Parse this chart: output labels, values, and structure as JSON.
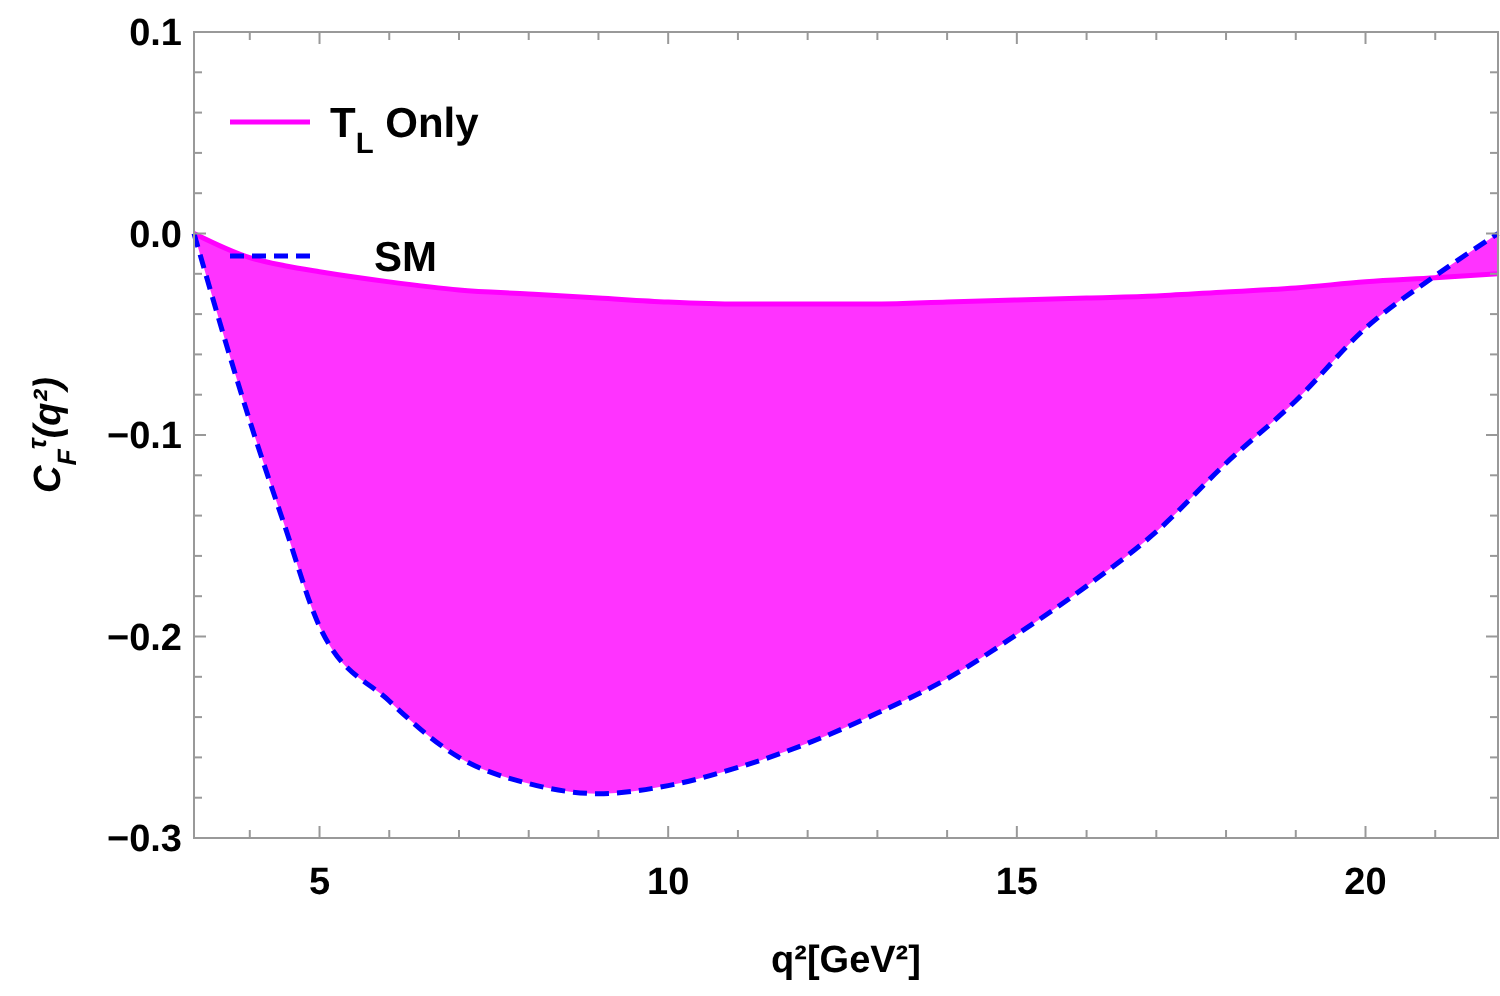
{
  "chart_data": {
    "type": "line",
    "xlabel": "q²[GeV²]",
    "ylabel": "C$_{F}$$^{τ}$(q²)",
    "x": [
      3.2,
      4,
      4.5,
      5,
      6,
      7,
      8,
      9,
      10,
      11,
      12,
      13,
      14,
      15,
      16,
      17,
      18,
      19,
      20,
      21,
      21.9
    ],
    "series": [
      {
        "name": "T$_{L}$ Only",
        "color": "#ff00ff",
        "line_style": "solid",
        "values": [
          0,
          -0.012,
          -0.016,
          -0.019,
          -0.024,
          -0.028,
          -0.03,
          -0.032,
          -0.034,
          -0.035,
          -0.035,
          -0.035,
          -0.034,
          -0.033,
          -0.032,
          -0.031,
          -0.029,
          -0.027,
          -0.024,
          -0.022,
          -0.02
        ],
        "lower": [
          0,
          -0.093,
          -0.145,
          -0.195,
          -0.232,
          -0.26,
          -0.273,
          -0.278,
          -0.274,
          -0.265,
          -0.253,
          -0.238,
          -0.221,
          -0.199,
          -0.175,
          -0.148,
          -0.114,
          -0.083,
          -0.047,
          -0.021,
          0
        ],
        "upper": [
          0,
          -0.012,
          -0.016,
          -0.019,
          -0.024,
          -0.028,
          -0.03,
          -0.032,
          -0.034,
          -0.035,
          -0.035,
          -0.035,
          -0.034,
          -0.033,
          -0.032,
          -0.031,
          -0.029,
          -0.027,
          -0.024,
          -0.022,
          -0.02
        ]
      },
      {
        "name": "SM",
        "color": "#0000ff",
        "line_style": "dashed",
        "values": [
          0,
          -0.093,
          -0.145,
          -0.195,
          -0.232,
          -0.26,
          -0.273,
          -0.278,
          -0.274,
          -0.265,
          -0.253,
          -0.238,
          -0.221,
          -0.199,
          -0.175,
          -0.148,
          -0.114,
          -0.083,
          -0.047,
          -0.021,
          0
        ]
      }
    ],
    "xlim": [
      3.2,
      21.9
    ],
    "ylim": [
      -0.3,
      0.1
    ],
    "xticks": [
      {
        "value": 4,
        "label": null
      },
      5,
      {
        "value": 6,
        "label": null
      },
      {
        "value": 7,
        "label": null
      },
      {
        "value": 8,
        "label": null
      },
      {
        "value": 9,
        "label": null
      },
      10,
      {
        "value": 11,
        "label": null
      },
      {
        "value": 12,
        "label": null
      },
      {
        "value": 13,
        "label": null
      },
      {
        "value": 14,
        "label": null
      },
      15,
      {
        "value": 16,
        "label": null
      },
      {
        "value": 17,
        "label": null
      },
      {
        "value": 18,
        "label": null
      },
      {
        "value": 19,
        "label": null
      },
      20,
      {
        "value": 21,
        "label": null
      }
    ],
    "yticks": [
      {
        "value": -0.3,
        "label": "−0.3"
      },
      {
        "value": -0.28,
        "label": null
      },
      {
        "value": -0.26,
        "label": null
      },
      {
        "value": -0.24,
        "label": null
      },
      {
        "value": -0.22,
        "label": null
      },
      {
        "value": -0.2,
        "label": "−0.2"
      },
      {
        "value": -0.18,
        "label": null
      },
      {
        "value": -0.16,
        "label": null
      },
      {
        "value": -0.14,
        "label": null
      },
      {
        "value": -0.12,
        "label": null
      },
      {
        "value": -0.1,
        "label": "−0.1"
      },
      {
        "value": -0.08,
        "label": null
      },
      {
        "value": -0.06,
        "label": null
      },
      {
        "value": -0.04,
        "label": null
      },
      {
        "value": -0.02,
        "label": null
      },
      {
        "value": 0,
        "label": "0.0"
      },
      {
        "value": 0.02,
        "label": null
      },
      {
        "value": 0.04,
        "label": null
      },
      {
        "value": 0.06,
        "label": null
      },
      {
        "value": 0.08,
        "label": null
      },
      0.1
    ],
    "grid": false,
    "legend": "top left",
    "marker": "none"
  }
}
